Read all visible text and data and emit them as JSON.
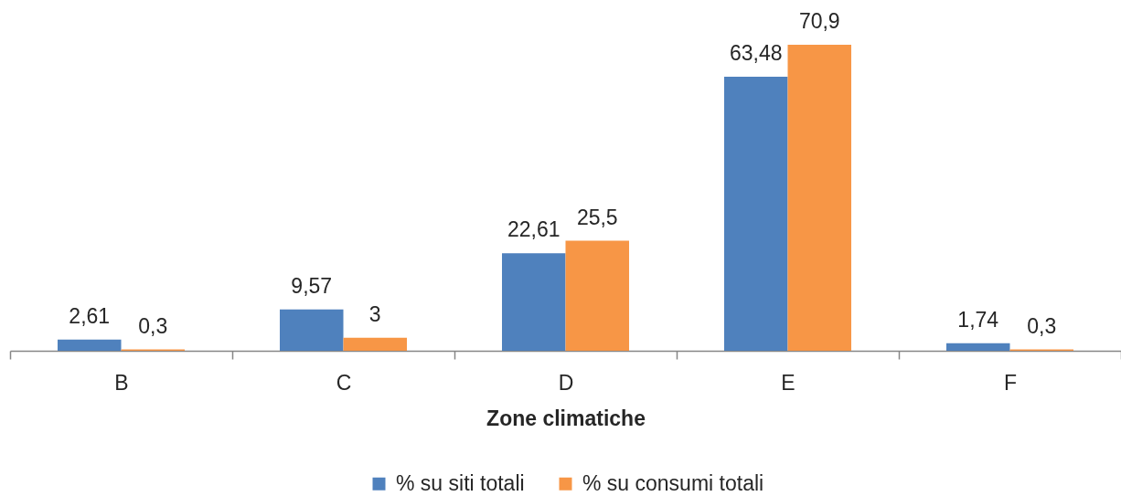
{
  "chart_data": {
    "type": "bar",
    "xlabel": "Zone climatiche",
    "categories": [
      "B",
      "C",
      "D",
      "E",
      "F"
    ],
    "series": [
      {
        "name": "% su siti totali",
        "color": "#4f81bd",
        "values": [
          2.61,
          9.57,
          22.61,
          63.48,
          1.74
        ],
        "value_labels": [
          "2,61",
          "9,57",
          "22,61",
          "63,48",
          "1,74"
        ]
      },
      {
        "name": "% su consumi totali",
        "color": "#f79646",
        "values": [
          0.3,
          3,
          25.5,
          70.9,
          0.3
        ],
        "value_labels": [
          "0,3",
          "3",
          "25,5",
          "70,9",
          "0,3"
        ]
      }
    ],
    "tick_labels": "x",
    "legend": "bottom"
  }
}
